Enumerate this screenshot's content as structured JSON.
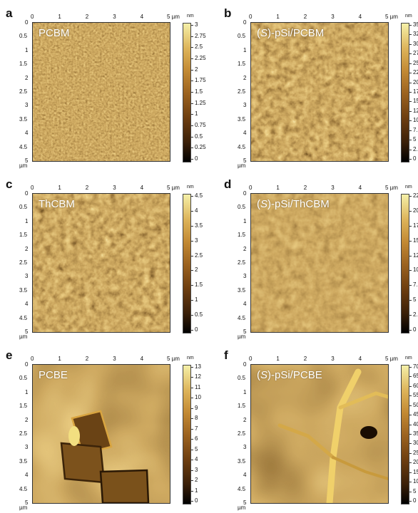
{
  "panels": [
    {
      "letter": "a",
      "label": "PCBM",
      "unit": "nm",
      "scale_ticks": [
        "3",
        "2.75",
        "2.5",
        "2.25",
        "2",
        "1.75",
        "1.5",
        "1.25",
        "1",
        "0.75",
        "0.5",
        "0.25",
        "0"
      ],
      "texture": "fine",
      "seed": 3
    },
    {
      "letter": "b",
      "label_prefix": "(",
      "label_italic": "S",
      "label_suffix": ")-pSi/PCBM",
      "unit": "nm",
      "scale_ticks": [
        "35",
        "32.",
        "30",
        "27.",
        "25",
        "22.",
        "20",
        "17.",
        "15",
        "12.",
        "10",
        "7.5",
        "5",
        "2.5",
        "0"
      ],
      "texture": "grain",
      "seed": 11
    },
    {
      "letter": "c",
      "label": "ThCBM",
      "unit": "nm",
      "scale_ticks": [
        "4.5",
        "4",
        "3.5",
        "3",
        "2.5",
        "2",
        "1.5",
        "1",
        "0.5",
        "0"
      ],
      "texture": "grain",
      "seed": 7
    },
    {
      "letter": "d",
      "label_prefix": "(",
      "label_italic": "S",
      "label_suffix": ")-pSi/ThCBM",
      "unit": "nm",
      "scale_ticks": [
        "22.",
        "20",
        "17.",
        "15",
        "12.",
        "10",
        "7.5",
        "5",
        "2.5",
        "0"
      ],
      "texture": "flat",
      "seed": 19
    },
    {
      "letter": "e",
      "label": "PCBE",
      "unit": "nm",
      "scale_ticks": [
        "13",
        "12",
        "11",
        "10",
        "9",
        "8",
        "7",
        "6",
        "5",
        "4",
        "3",
        "2",
        "1",
        "0"
      ],
      "texture": "smooth",
      "seed": 23
    },
    {
      "letter": "f",
      "label_prefix": "(",
      "label_italic": "S",
      "label_suffix": ")-pSi/PCBE",
      "unit": "nm",
      "scale_ticks": [
        "70",
        "65",
        "60",
        "55",
        "50",
        "45",
        "40",
        "35",
        "30",
        "25",
        "20",
        "15",
        "10",
        "5",
        "0"
      ],
      "texture": "smooth",
      "seed": 31
    }
  ],
  "x_ticks": [
    "0",
    "1",
    "2",
    "3",
    "4",
    "5 µm"
  ],
  "y_ticks": [
    "0",
    "0.5",
    "1",
    "1.5",
    "2",
    "2.5",
    "3",
    "3.5",
    "4",
    "4.5",
    "5"
  ],
  "corner_unit": "µm"
}
